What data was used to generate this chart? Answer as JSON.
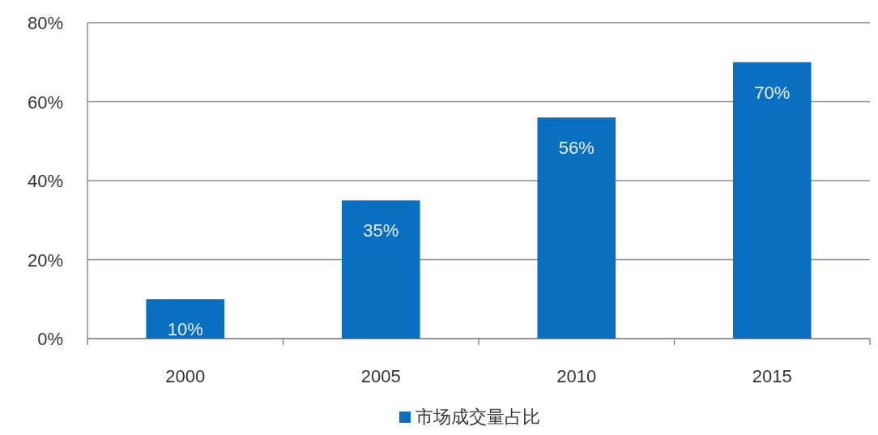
{
  "chart_data": {
    "type": "bar",
    "categories": [
      "2000",
      "2005",
      "2010",
      "2015"
    ],
    "series": [
      {
        "name": "市场成交量占比",
        "color": "#0b6fc1",
        "values": [
          10,
          35,
          56,
          70
        ],
        "value_labels": [
          "10%",
          "35%",
          "56%",
          "70%"
        ]
      }
    ],
    "ylim": [
      0,
      80
    ],
    "yticks": [
      {
        "value": 0,
        "label": "0%"
      },
      {
        "value": 20,
        "label": "20%"
      },
      {
        "value": 40,
        "label": "40%"
      },
      {
        "value": 60,
        "label": "60%"
      },
      {
        "value": 80,
        "label": "80%"
      }
    ],
    "grid": "y",
    "legend": "bottom"
  }
}
